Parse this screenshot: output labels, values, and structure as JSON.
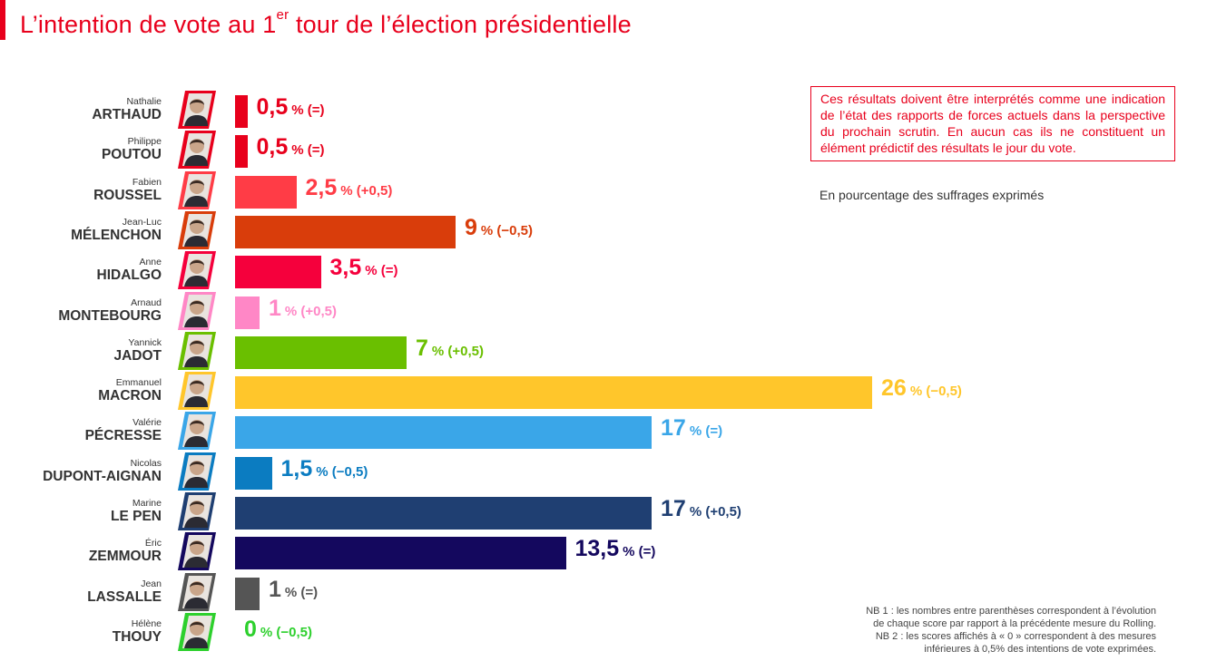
{
  "colors": {
    "brand": "#e8001c"
  },
  "header": {
    "title_before": "L’intention de vote au 1",
    "title_sup": "er",
    "title_after": " tour de l’élection présidentielle"
  },
  "notes": {
    "box_text": "Ces résultats doivent être interprétés comme une indication de l’état des rapports de forces actuels dans la perspective du prochain scrutin. En aucun cas ils ne constituent un élément prédictif des résultats le jour du vote.",
    "unit_text": "En pourcentage des suffrages exprimés",
    "nb1_line1": "NB 1 : les nombres entre parenthèses correspondent à l’évolution",
    "nb1_line2": "de chaque score par rapport à la précédente mesure du Rolling.",
    "nb2_line1": "NB 2 : les scores affichés à « 0 » correspondent à des mesures",
    "nb2_line2": "inférieures à 0,5% des intentions de vote exprimées."
  },
  "chart_data": {
    "type": "bar",
    "orientation": "horizontal",
    "xlim": [
      0,
      26
    ],
    "grid": false,
    "legend": "none",
    "candidates": [
      {
        "first": "Nathalie",
        "last": "ARTHAUD",
        "value": 0.5,
        "label": "0,5",
        "change": "% (=)",
        "color": "#e8001c"
      },
      {
        "first": "Philippe",
        "last": "POUTOU",
        "value": 0.5,
        "label": "0,5",
        "change": "% (=)",
        "color": "#e8001c"
      },
      {
        "first": "Fabien",
        "last": "ROUSSEL",
        "value": 2.5,
        "label": "2,5",
        "change": "% (+0,5)",
        "color": "#ff3c46"
      },
      {
        "first": "Jean-Luc",
        "last": "MÉLENCHON",
        "value": 9,
        "label": "9",
        "change": "% (−0,5)",
        "color": "#d93d0b"
      },
      {
        "first": "Anne",
        "last": "HIDALGO",
        "value": 3.5,
        "label": "3,5",
        "change": "% (=)",
        "color": "#f5003c"
      },
      {
        "first": "Arnaud",
        "last": "MONTEBOURG",
        "value": 1,
        "label": "1",
        "change": "% (+0,5)",
        "color": "#ff87c6"
      },
      {
        "first": "Yannick",
        "last": "JADOT",
        "value": 7,
        "label": "7",
        "change": "% (+0,5)",
        "color": "#6abf00"
      },
      {
        "first": "Emmanuel",
        "last": "MACRON",
        "value": 26,
        "label": "26",
        "change": "% (−0,5)",
        "color": "#ffc62b"
      },
      {
        "first": "Valérie",
        "last": "PÉCRESSE",
        "value": 17,
        "label": "17",
        "change": "% (=)",
        "color": "#3aa6e8"
      },
      {
        "first": "Nicolas",
        "last": "DUPONT-AIGNAN",
        "value": 1.5,
        "label": "1,5",
        "change": "% (−0,5)",
        "color": "#0b7cc1"
      },
      {
        "first": "Marine",
        "last": "LE PEN",
        "value": 17,
        "label": "17",
        "change": "% (+0,5)",
        "color": "#1f3f72"
      },
      {
        "first": "Éric",
        "last": "ZEMMOUR",
        "value": 13.5,
        "label": "13,5",
        "change": "% (=)",
        "color": "#14085e"
      },
      {
        "first": "Jean",
        "last": "LASSALLE",
        "value": 1,
        "label": "1",
        "change": "% (=)",
        "color": "#555555"
      },
      {
        "first": "Hélène",
        "last": "THOUY",
        "value": 0,
        "label": "0",
        "change": "% (−0,5)",
        "color": "#2dd02d"
      }
    ]
  }
}
